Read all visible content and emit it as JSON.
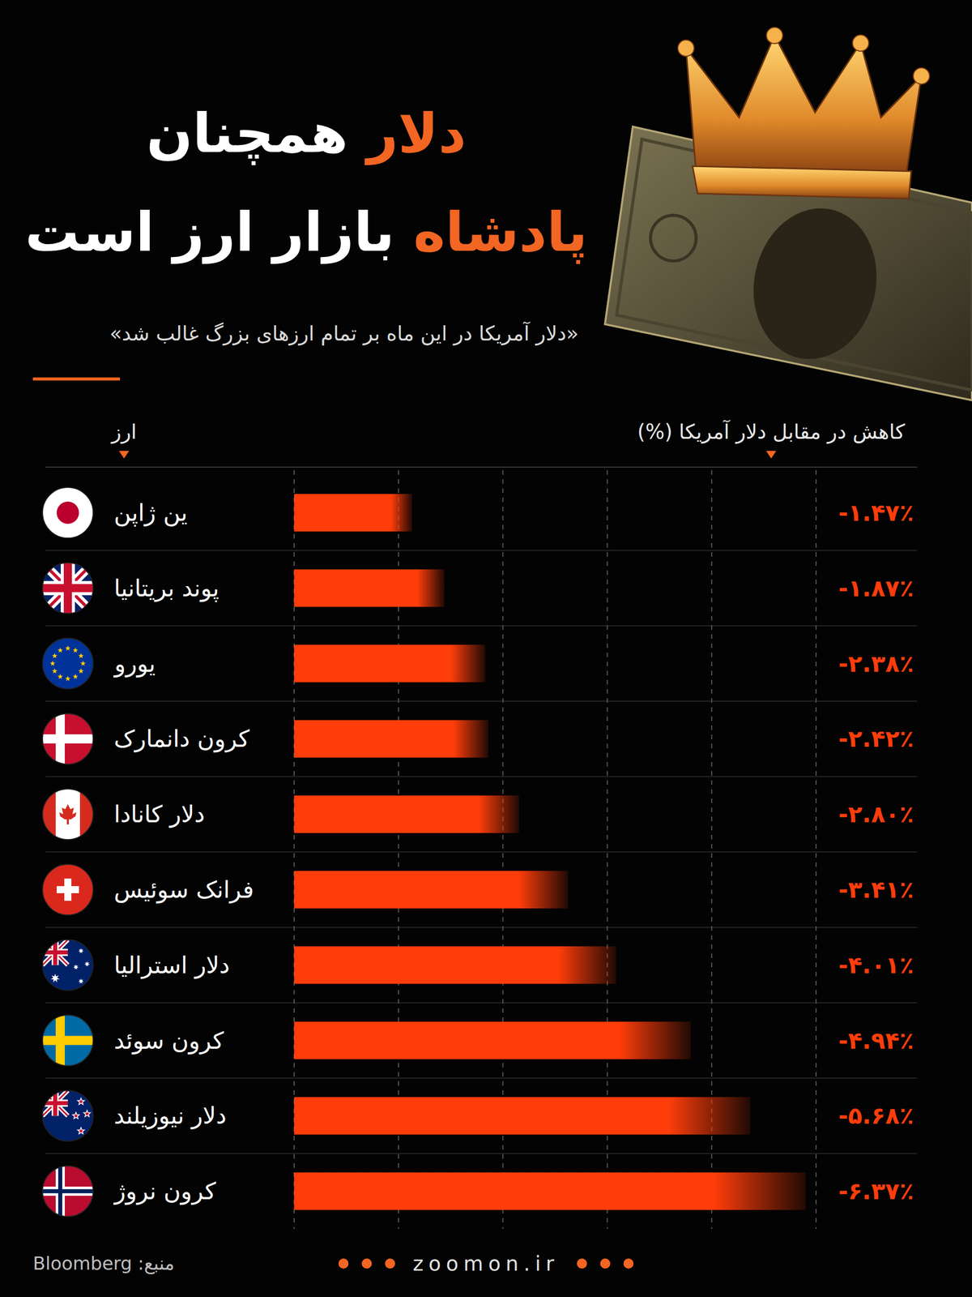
{
  "chart_data": {
    "type": "bar",
    "orientation": "horizontal",
    "title": [
      "دلار همچنان",
      "پادشاه بازار ارز است"
    ],
    "subtitle": "«دلار آمریکا در این ماه بر تمام ارزهای بزرگ غالب شد»",
    "ylabel": "ارز",
    "xlabel": "کاهش در مقابل دلار آمریکا (%)",
    "categories": [
      "ین ژاپن",
      "پوند بریتانیا",
      "یورو",
      "کرون دانمارک",
      "دلار کانادا",
      "فرانک سوئیس",
      "دلار استرالیا",
      "کرون سوئد",
      "دلار نیوزیلند",
      "کرون نروژ"
    ],
    "values": [
      -1.47,
      -1.87,
      -2.38,
      -2.42,
      -2.8,
      -3.41,
      -4.01,
      -4.94,
      -5.68,
      -6.37
    ],
    "value_labels": [
      "-۱.۴۷٪",
      "-۱.۸۷٪",
      "-۲.۳۸٪",
      "-۲.۴۲٪",
      "-۲.۸۰٪",
      "-۳.۴۱٪",
      "-۴.۰۱٪",
      "-۴.۹۴٪",
      "-۵.۶۸٪",
      "-۶.۳۷٪"
    ],
    "color": "#ff3d0a",
    "xlim": [
      0,
      -6.5
    ],
    "xticks": [
      0,
      -1.3,
      -2.6,
      -3.9,
      -5.2,
      -6.5
    ],
    "grid": true,
    "tick_labels": false,
    "data_labels": true,
    "source": "منبع: Bloomberg",
    "website": "zoomon.ir"
  }
}
